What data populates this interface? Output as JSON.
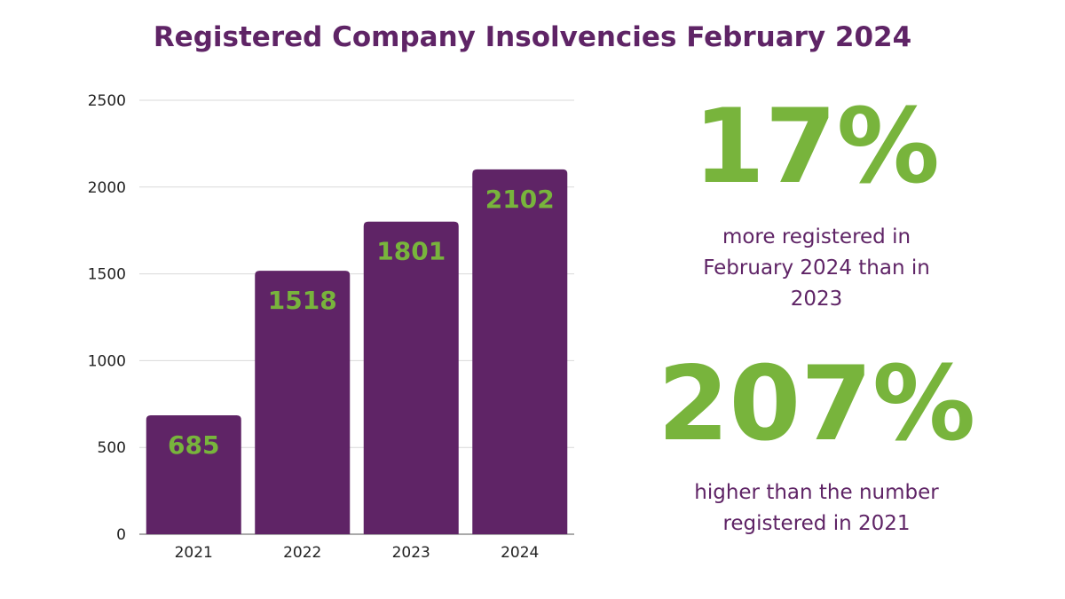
{
  "title": "Registered Company Insolvencies February 2024",
  "colors": {
    "bar": "#5f2466",
    "value_label": "#78b43c",
    "title": "#5f2466",
    "grid": "#d9d9d9",
    "axis_text": "#222222"
  },
  "chart_data": {
    "type": "bar",
    "categories": [
      "2021",
      "2022",
      "2023",
      "2024"
    ],
    "values": [
      685,
      1518,
      1801,
      2102
    ],
    "title": "",
    "xlabel": "",
    "ylabel": "",
    "ylim": [
      0,
      2500
    ],
    "yticks": [
      0,
      500,
      1000,
      1500,
      2000,
      2500
    ],
    "grid": true,
    "data_labels": true
  },
  "stats": [
    {
      "value": "17%",
      "text": "more registered in February 2024 than in 2023"
    },
    {
      "value": "207%",
      "text": "higher than the number registered in 2021"
    }
  ]
}
